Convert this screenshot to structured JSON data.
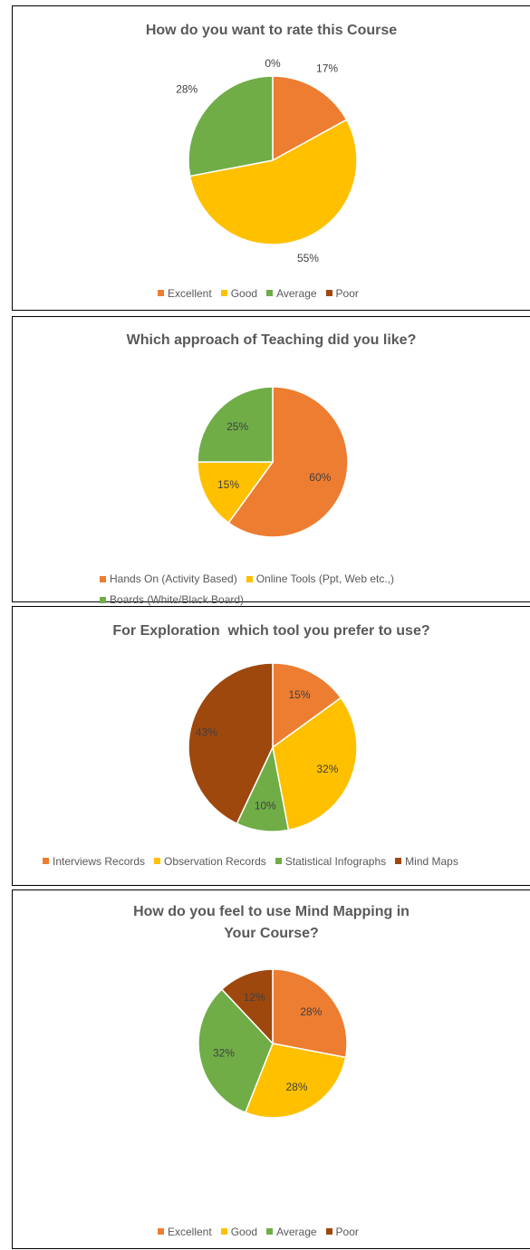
{
  "colors": {
    "excellent": "#ED7D31",
    "good": "#FFC000",
    "average": "#70AD47",
    "poor": "#9E480E"
  },
  "chart_data": [
    {
      "type": "pie",
      "title": "How do you want to rate this Course",
      "categories": [
        "Excellent",
        "Good",
        "Average",
        "Poor"
      ],
      "values": [
        17,
        55,
        28,
        0
      ],
      "labels": [
        "17%",
        "55%",
        "28%",
        "0%"
      ],
      "colors": [
        "#ED7D31",
        "#FFC000",
        "#70AD47",
        "#9E480E"
      ],
      "legend": "bottom"
    },
    {
      "type": "pie",
      "title": "Which approach of Teaching did you like?",
      "categories": [
        "Hands On (Activity Based)",
        "Online Tools (Ppt, Web etc.,)",
        "Boards (White/Black Board)"
      ],
      "values": [
        60,
        15,
        25
      ],
      "labels": [
        "60%",
        "15%",
        "25%"
      ],
      "colors": [
        "#ED7D31",
        "#FFC000",
        "#70AD47"
      ],
      "legend": "bottom"
    },
    {
      "type": "pie",
      "title": "For Exploration  which tool you prefer to use?",
      "categories": [
        "Interviews Records",
        "Observation Records",
        "Statistical Infographs",
        "Mind Maps"
      ],
      "values": [
        15,
        32,
        10,
        43
      ],
      "labels": [
        "15%",
        "32%",
        "10%",
        "43%"
      ],
      "colors": [
        "#ED7D31",
        "#FFC000",
        "#70AD47",
        "#9E480E"
      ],
      "legend": "bottom"
    },
    {
      "type": "pie",
      "title": "How do you feel to use Mind Mapping in Your Course?",
      "categories": [
        "Excellent",
        "Good",
        "Average",
        "Poor"
      ],
      "values": [
        28,
        28,
        32,
        12
      ],
      "labels": [
        "28%",
        "28%",
        "32%",
        "12%"
      ],
      "colors": [
        "#ED7D31",
        "#FFC000",
        "#70AD47",
        "#9E480E"
      ],
      "legend": "bottom"
    }
  ]
}
